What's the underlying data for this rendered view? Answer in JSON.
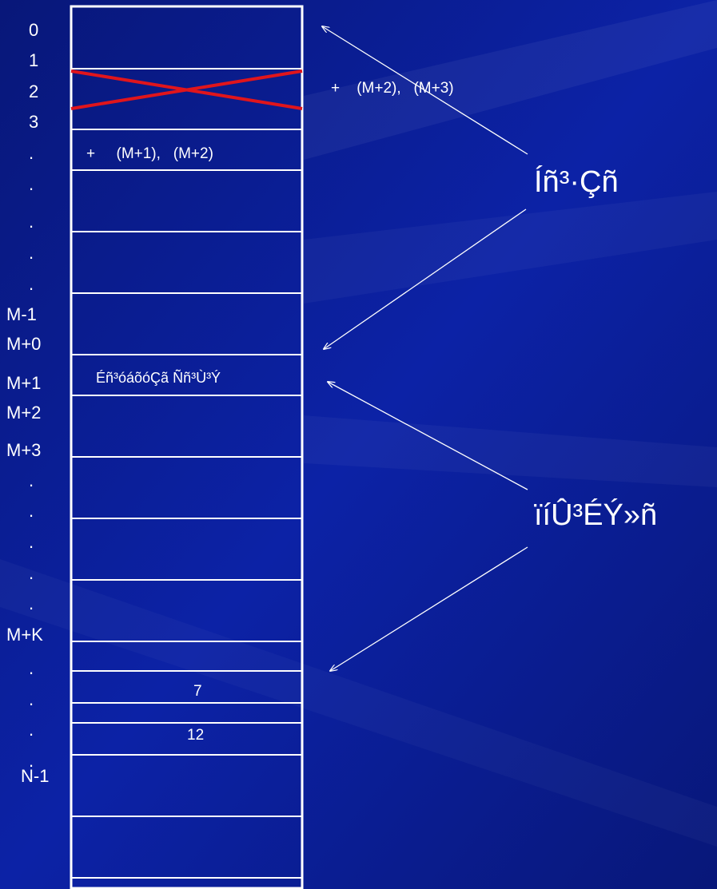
{
  "colors": {
    "background": "#0a1a8c",
    "cell_border": "#ffffff",
    "cross_out": "#e0151c",
    "text": "#ffffff"
  },
  "address_labels": [
    "0",
    "1",
    "2",
    "3",
    ".",
    ".",
    ".",
    ".",
    ".",
    "M-1",
    "M+0",
    "M+1",
    "M+2",
    "M+3",
    ".",
    ".",
    ".",
    ".",
    ".",
    "M+K",
    ".",
    ".",
    ".",
    ".",
    "N-1"
  ],
  "cells": {
    "cell_3_text": "+     (M+1),   (M+2)",
    "cell_m1_text": "Éñ³óáõóÇã Ññ³Ù³Ý",
    "cell_value_a": "7",
    "cell_value_b": "12",
    "crossed_cell_note": "+    (M+2),   (M+3)"
  },
  "labels": {
    "upper": "Íñ³·Çñ",
    "lower": "ïíÛ³ÉÝ»ñ"
  }
}
